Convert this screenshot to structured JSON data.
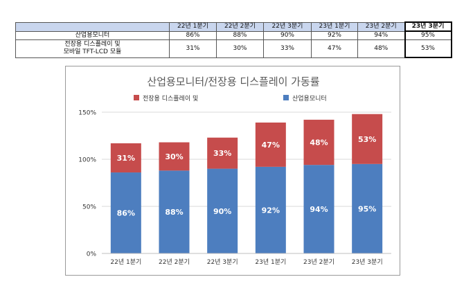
{
  "table": {
    "headers": [
      "",
      "22년 1분기",
      "22년 2분기",
      "22년 3분기",
      "23년 1분기",
      "23년 2분기",
      "23년 3분기"
    ],
    "rows": [
      {
        "label_lines": [
          "산업용모니터"
        ],
        "values": [
          "86%",
          "88%",
          "90%",
          "92%",
          "94%",
          "95%"
        ]
      },
      {
        "label_lines": [
          "전장용 디스플레이 및",
          "모바일 TFT-LCD 모듈"
        ],
        "values": [
          "31%",
          "30%",
          "33%",
          "47%",
          "48%",
          "53%"
        ]
      }
    ]
  },
  "chart_data": {
    "type": "bar",
    "stacked": true,
    "title": "산업용모니터/전장용 디스플레이 가동률",
    "categories": [
      "22년 1분기",
      "22년 2분기",
      "22년 3분기",
      "23년 1분기",
      "23년 2분기",
      "23년 3분기"
    ],
    "series": [
      {
        "name": "산업용모니터",
        "values": [
          86,
          88,
          90,
          92,
          94,
          95
        ],
        "labels": [
          "86%",
          "88%",
          "90%",
          "92%",
          "94%",
          "95%"
        ],
        "color": "#4d7ebf"
      },
      {
        "name": "전장용 디스플레이 및",
        "values": [
          31,
          30,
          33,
          47,
          48,
          53
        ],
        "labels": [
          "31%",
          "30%",
          "33%",
          "47%",
          "48%",
          "53%"
        ],
        "color": "#c64c4c"
      }
    ],
    "legend": [
      {
        "name": "전장용 디스플레이 및",
        "color": "#c64c4c"
      },
      {
        "name": "산업용모니터",
        "color": "#4d7ebf"
      }
    ],
    "ylim": [
      0,
      150
    ],
    "yticks": [
      0,
      50,
      100,
      150
    ],
    "ytick_labels": [
      "0%",
      "50%",
      "100%",
      "150%"
    ],
    "grid": true,
    "legend_position": "top"
  }
}
